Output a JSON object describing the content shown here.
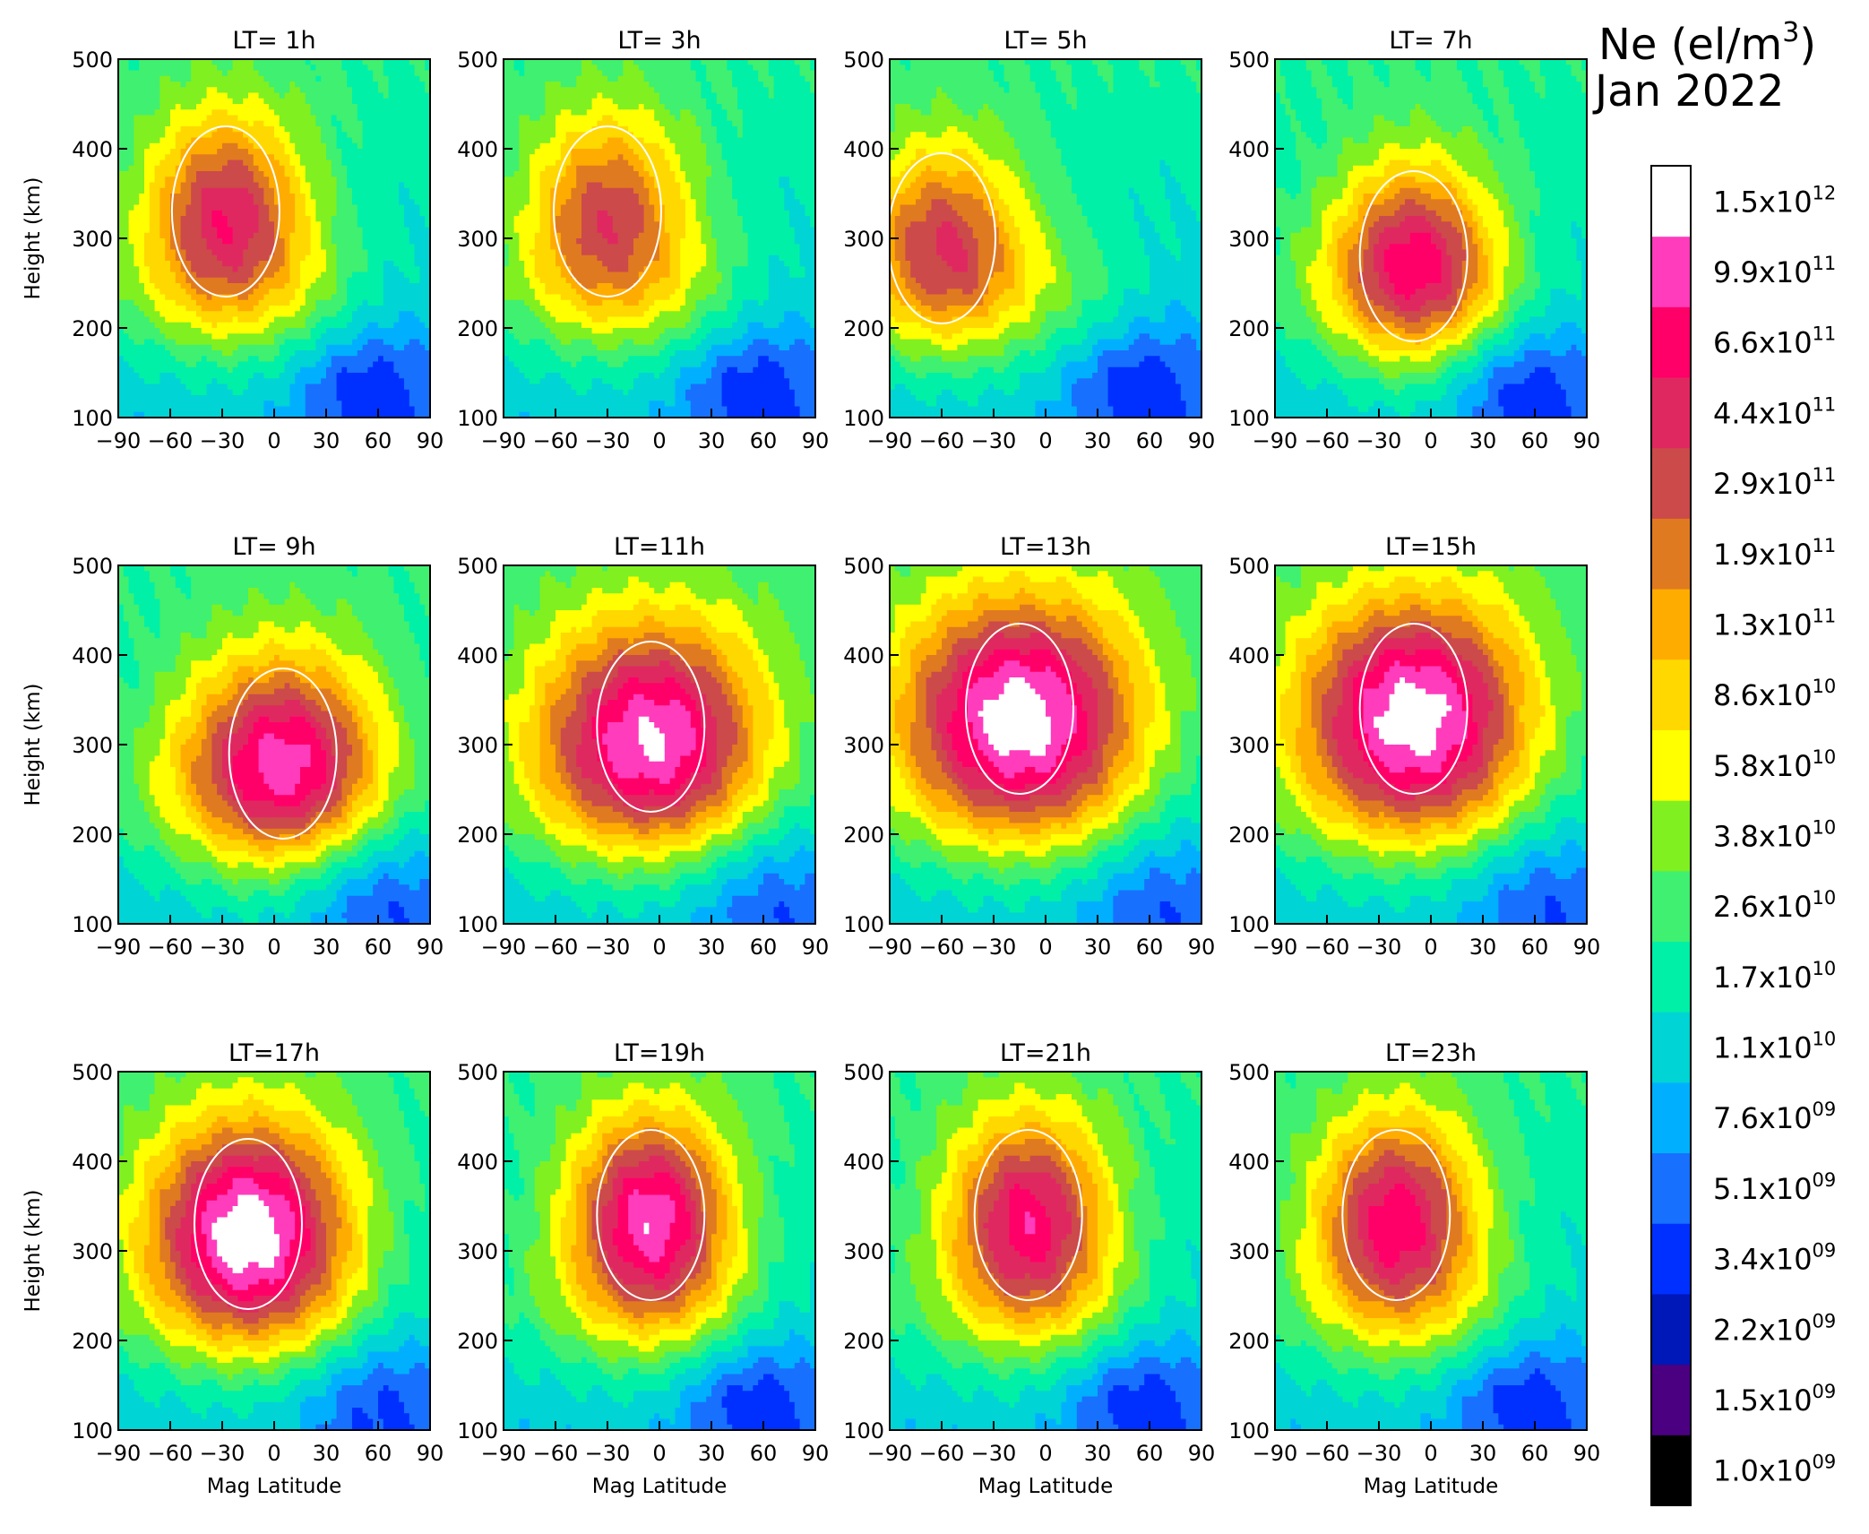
{
  "figure": {
    "title_line1": "Ne (el/m",
    "title_sup": "3",
    "title_line1_end": ")",
    "title_line2": "Jan 2022"
  },
  "colors": {
    "levels": [
      "#000000",
      "#4a0080",
      "#0018b8",
      "#0030ff",
      "#1870ff",
      "#00b0ff",
      "#00d4d4",
      "#00f0a8",
      "#40f070",
      "#80f020",
      "#ffff00",
      "#ffd800",
      "#ffac00",
      "#e07a20",
      "#cc4a4a",
      "#e02860",
      "#ff0068",
      "#ff3cbc",
      "#ffffff"
    ],
    "contour_line": "#ffffff",
    "axis": "#000000"
  },
  "chart_data": {
    "type": "heatmap",
    "variable": "Ne (el/m3)",
    "period": "Jan 2022",
    "xlabel": "Mag Latitude",
    "ylabel": "Height (km)",
    "xlim": [
      -90,
      90
    ],
    "ylim": [
      100,
      500
    ],
    "x_ticks": [
      "−90",
      "−60",
      "−30",
      "0",
      "30",
      "60",
      "90"
    ],
    "x_tick_values": [
      -90,
      -60,
      -30,
      0,
      30,
      60,
      90
    ],
    "y_ticks": [
      "100",
      "200",
      "300",
      "400",
      "500"
    ],
    "y_tick_values": [
      100,
      200,
      300,
      400,
      500
    ],
    "colorbar_levels": [
      1000000000.0,
      1500000000.0,
      2200000000.0,
      3400000000.0,
      5100000000.0,
      7600000000.0,
      11000000000.0,
      17000000000.0,
      26000000000.0,
      38000000000.0,
      58000000000.0,
      86000000000.0,
      130000000000.0,
      190000000000.0,
      290000000000.0,
      440000000000.0,
      660000000000.0,
      990000000000.0,
      1500000000000.0
    ],
    "colorbar_labels": [
      {
        "m": "1.0x10",
        "e": "09"
      },
      {
        "m": "1.5x10",
        "e": "09"
      },
      {
        "m": "2.2x10",
        "e": "09"
      },
      {
        "m": "3.4x10",
        "e": "09"
      },
      {
        "m": "5.1x10",
        "e": "09"
      },
      {
        "m": "7.6x10",
        "e": "09"
      },
      {
        "m": "1.1x10",
        "e": "10"
      },
      {
        "m": "1.7x10",
        "e": "10"
      },
      {
        "m": "2.6x10",
        "e": "10"
      },
      {
        "m": "3.8x10",
        "e": "10"
      },
      {
        "m": "5.8x10",
        "e": "10"
      },
      {
        "m": "8.6x10",
        "e": "10"
      },
      {
        "m": "1.3x10",
        "e": "11"
      },
      {
        "m": "1.9x10",
        "e": "11"
      },
      {
        "m": "2.9x10",
        "e": "11"
      },
      {
        "m": "4.4x10",
        "e": "11"
      },
      {
        "m": "6.6x10",
        "e": "11"
      },
      {
        "m": "9.9x10",
        "e": "11"
      },
      {
        "m": "1.5x10",
        "e": "12"
      }
    ],
    "panels": [
      {
        "title": "LT=  1h",
        "lt": 1,
        "peak_ne": 290000000000.0,
        "peak_lat": -28,
        "peak_h": 330
      },
      {
        "title": "LT=  3h",
        "lt": 3,
        "peak_ne": 190000000000.0,
        "peak_lat": -30,
        "peak_h": 330
      },
      {
        "title": "LT=  5h",
        "lt": 5,
        "peak_ne": 190000000000.0,
        "peak_lat": -60,
        "peak_h": 300
      },
      {
        "title": "LT=  7h",
        "lt": 7,
        "peak_ne": 290000000000.0,
        "peak_lat": -10,
        "peak_h": 280
      },
      {
        "title": "LT=  9h",
        "lt": 9,
        "peak_ne": 440000000000.0,
        "peak_lat": 5,
        "peak_h": 290
      },
      {
        "title": "LT=11h",
        "lt": 11,
        "peak_ne": 660000000000.0,
        "peak_lat": -5,
        "peak_h": 320
      },
      {
        "title": "LT=13h",
        "lt": 13,
        "peak_ne": 990000000000.0,
        "peak_lat": -15,
        "peak_h": 340
      },
      {
        "title": "LT=15h",
        "lt": 15,
        "peak_ne": 990000000000.0,
        "peak_lat": -10,
        "peak_h": 340
      },
      {
        "title": "LT=17h",
        "lt": 17,
        "peak_ne": 990000000000.0,
        "peak_lat": -15,
        "peak_h": 330
      },
      {
        "title": "LT=19h",
        "lt": 19,
        "peak_ne": 660000000000.0,
        "peak_lat": -5,
        "peak_h": 340
      },
      {
        "title": "LT=21h",
        "lt": 21,
        "peak_ne": 440000000000.0,
        "peak_lat": -10,
        "peak_h": 340
      },
      {
        "title": "LT=23h",
        "lt": 23,
        "peak_ne": 440000000000.0,
        "peak_lat": -20,
        "peak_h": 340
      }
    ],
    "grid": false,
    "legend": "colorbar-right"
  }
}
